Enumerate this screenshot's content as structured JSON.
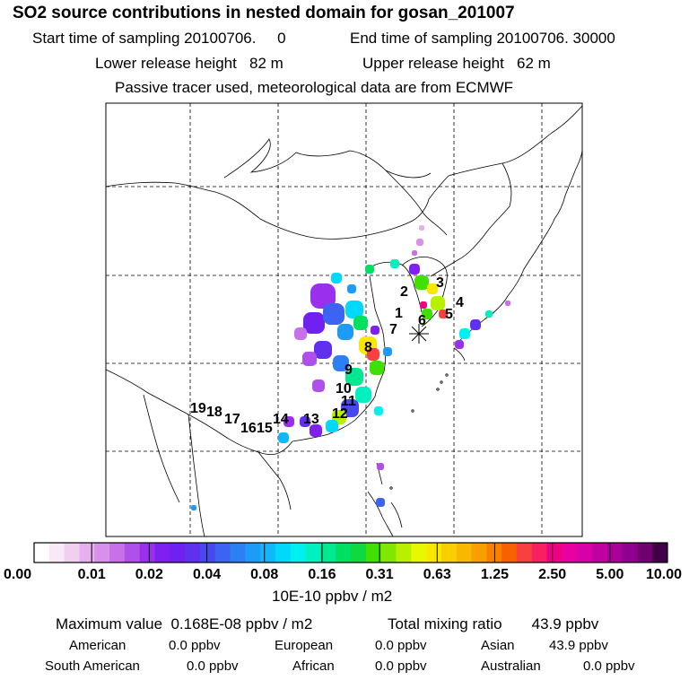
{
  "header": {
    "title": "SO2 source contributions in nested domain for gosan_201007",
    "start": "Start time of sampling 20100706.     0",
    "end": "End time of sampling 20100706. 30000",
    "lower": "Lower release height   82 m",
    "upper": "Upper release height   62 m",
    "note": "Passive tracer used, meteorological data are from ECMWF"
  },
  "chart_data": {
    "type": "heatmap",
    "color_scale": {
      "tick_labels": [
        "0.00",
        "0.01",
        "0.02",
        "0.04",
        "0.08",
        "0.16",
        "0.31",
        "0.63",
        "1.25",
        "2.50",
        "5.00",
        "10.00"
      ],
      "unit": "10E-10 ppbv / m2",
      "colors": [
        "#ffffff",
        "#f8e8f8",
        "#f0d0f0",
        "#e6b0ee",
        "#d890ea",
        "#c870ea",
        "#b050ea",
        "#9a30ee",
        "#8020f0",
        "#7020f0",
        "#6030ee",
        "#4848f0",
        "#3c64f0",
        "#2c80f4",
        "#1c9cf8",
        "#10b8fa",
        "#00d8fc",
        "#00f0f0",
        "#00f0c0",
        "#00e890",
        "#00e060",
        "#10d840",
        "#40e000",
        "#80e800",
        "#b8f000",
        "#e8f800",
        "#f8e800",
        "#f8d000",
        "#f8b800",
        "#f8a000",
        "#f88000",
        "#f86000",
        "#f84040",
        "#f82060",
        "#f00080",
        "#e800a0",
        "#d800a8",
        "#c000a0",
        "#a80098",
        "#900090",
        "#700070",
        "#400048"
      ]
    },
    "source_labels": [
      "1",
      "2",
      "3",
      "4",
      "5",
      "6",
      "7",
      "8",
      "9",
      "10",
      "11",
      "12",
      "13",
      "14",
      "15",
      "16",
      "17",
      "18",
      "19"
    ],
    "receptor": "gosan"
  },
  "footer": {
    "max_label": "Maximum value  0.168E-08 ppbv / m2",
    "total_label": "Total mixing ratio       43.9 ppbv",
    "regions": [
      {
        "name": "American",
        "value": "0.0 ppbv"
      },
      {
        "name": "European",
        "value": "0.0 ppbv"
      },
      {
        "name": "Asian",
        "value": "43.9 ppbv"
      },
      {
        "name": "South American",
        "value": "0.0 ppbv"
      },
      {
        "name": "African",
        "value": "0.0 ppbv"
      },
      {
        "name": "Australian",
        "value": "0.0 ppbv"
      }
    ]
  }
}
